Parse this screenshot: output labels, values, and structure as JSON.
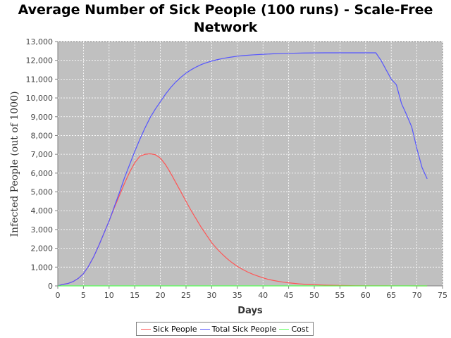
{
  "chart_data": {
    "type": "line",
    "title": "Average Number of Sick People (100 runs) - Scale-Free Network",
    "title_lines": [
      "Average Number of Sick People (100 runs) - Scale-Free",
      "Network"
    ],
    "xlabel": "Days",
    "ylabel": "Infected People (out of 1000)",
    "xlim": [
      0,
      75
    ],
    "ylim": [
      0,
      13000
    ],
    "x_ticks": [
      0,
      5,
      10,
      15,
      20,
      25,
      30,
      35,
      40,
      45,
      50,
      55,
      60,
      65,
      70,
      75
    ],
    "x_tick_labels": [
      "0",
      "5",
      "10",
      "15",
      "20",
      "25",
      "30",
      "35",
      "40",
      "45",
      "50",
      "55",
      "60",
      "65",
      "70",
      "75"
    ],
    "y_ticks": [
      0,
      1000,
      2000,
      3000,
      4000,
      5000,
      6000,
      7000,
      8000,
      9000,
      10000,
      11000,
      12000,
      13000
    ],
    "y_tick_labels": [
      "0",
      "1,000",
      "2,000",
      "3,000",
      "4,000",
      "5,000",
      "6,000",
      "7,000",
      "8,000",
      "9,000",
      "10,000",
      "11,000",
      "12,000",
      "13,000"
    ],
    "grid": true,
    "plot_background": "#c0c0c0",
    "legend_position": "bottom",
    "series": [
      {
        "name": "Sick People",
        "color": "#ff5555",
        "x": [
          0,
          1,
          2,
          3,
          4,
          5,
          6,
          7,
          8,
          9,
          10,
          11,
          12,
          13,
          14,
          15,
          16,
          17,
          18,
          19,
          20,
          21,
          22,
          23,
          24,
          25,
          26,
          27,
          28,
          29,
          30,
          31,
          32,
          33,
          34,
          35,
          36,
          37,
          38,
          39,
          40,
          41,
          42,
          43,
          44,
          45,
          46,
          47,
          48,
          49,
          50,
          52,
          54,
          56,
          58,
          60,
          62,
          64,
          66,
          68,
          70,
          72
        ],
        "values": [
          0,
          80,
          130,
          230,
          400,
          650,
          1050,
          1550,
          2150,
          2800,
          3450,
          4150,
          4800,
          5450,
          6050,
          6550,
          6900,
          7000,
          7030,
          6980,
          6800,
          6450,
          6000,
          5500,
          5000,
          4500,
          4000,
          3550,
          3100,
          2700,
          2300,
          1980,
          1700,
          1450,
          1230,
          1040,
          880,
          740,
          620,
          520,
          430,
          350,
          290,
          240,
          200,
          165,
          135,
          110,
          90,
          75,
          60,
          40,
          28,
          18,
          12,
          8,
          6,
          4,
          3,
          2,
          1,
          1
        ]
      },
      {
        "name": "Total Sick People",
        "color": "#5555ff",
        "x": [
          0,
          1,
          2,
          3,
          4,
          5,
          6,
          7,
          8,
          9,
          10,
          11,
          12,
          13,
          14,
          15,
          16,
          17,
          18,
          19,
          20,
          21,
          22,
          23,
          24,
          25,
          26,
          27,
          28,
          29,
          30,
          31,
          32,
          33,
          34,
          35,
          36,
          38,
          40,
          42,
          44,
          46,
          48,
          50,
          52,
          54,
          56,
          58,
          60,
          62,
          63,
          64,
          65,
          66,
          67,
          68,
          69,
          70,
          71,
          72
        ],
        "values": [
          0,
          80,
          130,
          230,
          400,
          650,
          1050,
          1550,
          2150,
          2800,
          3450,
          4200,
          4950,
          5750,
          6450,
          7150,
          7800,
          8400,
          8950,
          9400,
          9800,
          10200,
          10550,
          10850,
          11100,
          11320,
          11500,
          11650,
          11780,
          11880,
          11960,
          12030,
          12090,
          12140,
          12180,
          12220,
          12250,
          12290,
          12320,
          12350,
          12370,
          12380,
          12390,
          12395,
          12400,
          12400,
          12400,
          12400,
          12400,
          12400,
          12000,
          11500,
          11000,
          10700,
          9700,
          9100,
          8450,
          7300,
          6300,
          5700
        ]
      },
      {
        "name": "Cost",
        "color": "#55ff55",
        "x": [
          0,
          72
        ],
        "values": [
          0,
          0
        ]
      }
    ]
  }
}
